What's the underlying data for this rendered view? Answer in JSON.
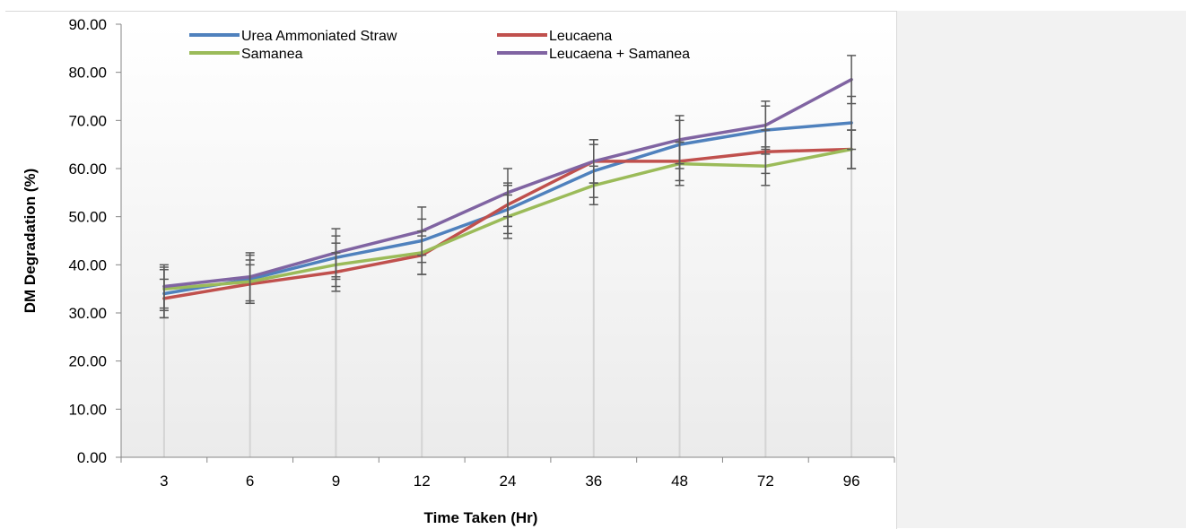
{
  "chart_data": {
    "type": "line",
    "title": "",
    "xlabel": "Time Taken (Hr)",
    "ylabel": "DM Degradation (%)",
    "ylim": [
      0,
      90
    ],
    "ytick_step": 10,
    "ytick_labels": [
      "0.00",
      "10.00",
      "20.00",
      "30.00",
      "40.00",
      "50.00",
      "60.00",
      "70.00",
      "80.00",
      "90.00"
    ],
    "categories": [
      "3",
      "6",
      "9",
      "12",
      "24",
      "36",
      "48",
      "72",
      "96"
    ],
    "grid": "vertical drop lines at each category",
    "legend_position": "top",
    "error_bars": true,
    "series": [
      {
        "name": "Urea Ammoniated Straw",
        "color": "#4f81bd",
        "values": [
          34.0,
          37.0,
          41.5,
          45.0,
          51.5,
          59.5,
          65.0,
          68.0,
          69.5
        ],
        "errors": [
          5.0,
          5.0,
          4.5,
          4.5,
          5.0,
          5.5,
          5.0,
          5.0,
          5.5
        ]
      },
      {
        "name": "Leucaena",
        "color": "#c0504d",
        "values": [
          33.0,
          36.0,
          38.5,
          42.0,
          52.5,
          61.5,
          61.5,
          63.5,
          64.0
        ],
        "errors": [
          4.0,
          4.0,
          4.0,
          4.0,
          4.5,
          4.5,
          4.0,
          4.5,
          4.0
        ]
      },
      {
        "name": "Samanea",
        "color": "#9bbb59",
        "values": [
          35.0,
          36.5,
          40.0,
          42.5,
          50.0,
          56.5,
          61.0,
          60.5,
          64.0
        ],
        "errors": [
          4.5,
          4.5,
          4.5,
          4.5,
          4.5,
          4.0,
          4.5,
          4.0,
          4.0
        ]
      },
      {
        "name": "Leucaena + Samanea",
        "color": "#8064a2",
        "values": [
          35.5,
          37.5,
          42.5,
          47.0,
          55.0,
          61.5,
          66.0,
          69.0,
          78.5
        ],
        "errors": [
          4.5,
          5.0,
          5.0,
          5.0,
          5.0,
          4.5,
          5.0,
          5.0,
          5.0
        ]
      }
    ]
  }
}
